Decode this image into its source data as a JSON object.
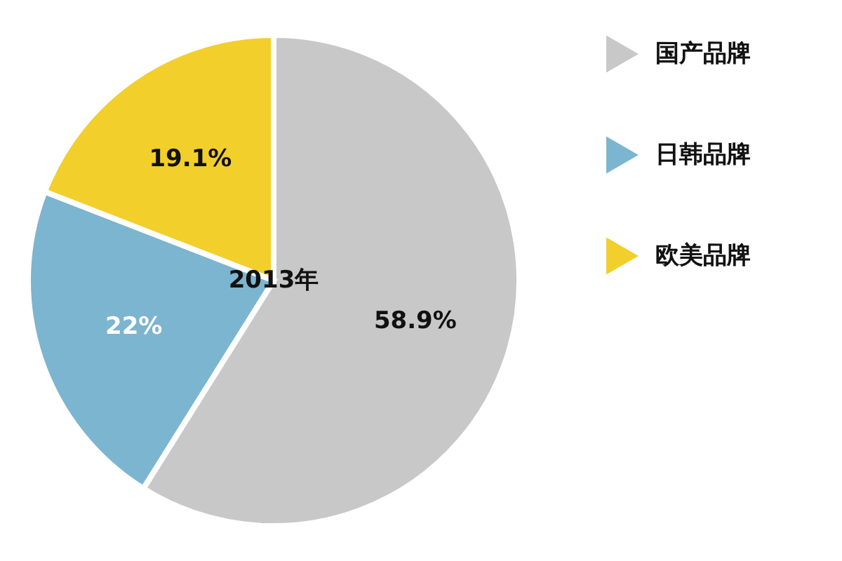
{
  "chart_data": {
    "type": "pie",
    "annotations": [
      "2013年"
    ],
    "categories": [
      "国产品牌",
      "日韩品牌",
      "欧美品牌"
    ],
    "values": [
      58.9,
      22,
      19.1
    ],
    "colors": [
      "#c8c8c8",
      "#7cb5cf",
      "#f2cf2a"
    ],
    "value_labels": [
      "58.9%",
      "22%",
      "19.1%"
    ],
    "legend": "right"
  }
}
